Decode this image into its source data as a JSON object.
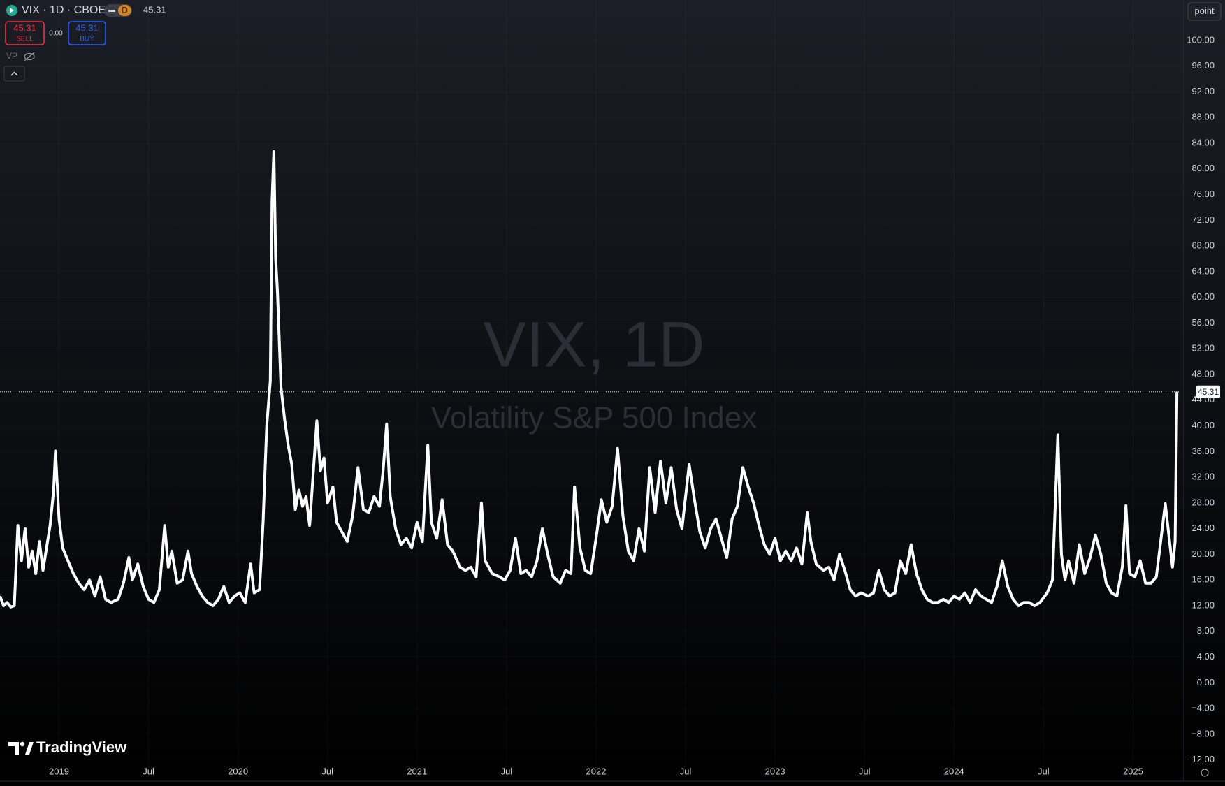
{
  "ui": {
    "symbol": "VIX · 1D · CBOE",
    "interval_badge": "D",
    "header_price": "45.31",
    "sell_price": "45.31",
    "sell_label": "SELL",
    "spread": "0.00",
    "buy_price": "45.31",
    "buy_label": "BUY",
    "vp_label": "VP",
    "scale_button": "point",
    "watermark_title": "VIX, 1D",
    "watermark_subtitle": "Volatility S&P 500 Index",
    "brand": "TradingView"
  },
  "chart_data": {
    "type": "line",
    "x": [
      2018.67,
      2018.69,
      2018.71,
      2018.73,
      2018.75,
      2018.77,
      2018.79,
      2018.81,
      2018.83,
      2018.85,
      2018.87,
      2018.89,
      2018.91,
      2018.93,
      2018.95,
      2018.97,
      2018.98,
      2019.0,
      2019.02,
      2019.05,
      2019.08,
      2019.11,
      2019.14,
      2019.17,
      2019.2,
      2019.23,
      2019.26,
      2019.29,
      2019.33,
      2019.36,
      2019.39,
      2019.41,
      2019.44,
      2019.47,
      2019.5,
      2019.53,
      2019.56,
      2019.59,
      2019.61,
      2019.63,
      2019.66,
      2019.69,
      2019.72,
      2019.74,
      2019.77,
      2019.8,
      2019.83,
      2019.86,
      2019.89,
      2019.92,
      2019.95,
      2019.98,
      2020.01,
      2020.04,
      2020.07,
      2020.09,
      2020.12,
      2020.14,
      2020.16,
      2020.18,
      2020.19,
      2020.2,
      2020.21,
      2020.22,
      2020.24,
      2020.26,
      2020.28,
      2020.3,
      2020.32,
      2020.34,
      2020.36,
      2020.38,
      2020.4,
      2020.44,
      2020.46,
      2020.48,
      2020.5,
      2020.53,
      2020.55,
      2020.58,
      2020.61,
      2020.64,
      2020.67,
      2020.7,
      2020.73,
      2020.76,
      2020.79,
      2020.81,
      2020.83,
      2020.85,
      2020.88,
      2020.91,
      2020.94,
      2020.97,
      2021.0,
      2021.03,
      2021.06,
      2021.08,
      2021.11,
      2021.14,
      2021.17,
      2021.2,
      2021.24,
      2021.27,
      2021.3,
      2021.33,
      2021.36,
      2021.38,
      2021.42,
      2021.46,
      2021.49,
      2021.52,
      2021.55,
      2021.58,
      2021.61,
      2021.64,
      2021.67,
      2021.7,
      2021.73,
      2021.76,
      2021.8,
      2021.83,
      2021.86,
      2021.88,
      2021.91,
      2021.94,
      2021.97,
      2022.0,
      2022.03,
      2022.06,
      2022.09,
      2022.12,
      2022.15,
      2022.18,
      2022.21,
      2022.24,
      2022.27,
      2022.3,
      2022.33,
      2022.36,
      2022.39,
      2022.42,
      2022.45,
      2022.48,
      2022.52,
      2022.55,
      2022.58,
      2022.61,
      2022.64,
      2022.67,
      2022.7,
      2022.73,
      2022.76,
      2022.79,
      2022.82,
      2022.85,
      2022.88,
      2022.91,
      2022.94,
      2022.97,
      2023.0,
      2023.03,
      2023.06,
      2023.09,
      2023.12,
      2023.15,
      2023.18,
      2023.2,
      2023.23,
      2023.27,
      2023.3,
      2023.33,
      2023.36,
      2023.39,
      2023.42,
      2023.45,
      2023.48,
      2023.52,
      2023.55,
      2023.58,
      2023.61,
      2023.64,
      2023.67,
      2023.7,
      2023.73,
      2023.76,
      2023.79,
      2023.82,
      2023.85,
      2023.88,
      2023.91,
      2023.94,
      2023.97,
      2024.0,
      2024.03,
      2024.06,
      2024.09,
      2024.12,
      2024.15,
      2024.18,
      2024.21,
      2024.24,
      2024.27,
      2024.3,
      2024.33,
      2024.36,
      2024.39,
      2024.42,
      2024.45,
      2024.48,
      2024.52,
      2024.55,
      2024.58,
      2024.6,
      2024.62,
      2024.64,
      2024.67,
      2024.7,
      2024.73,
      2024.76,
      2024.79,
      2024.82,
      2024.85,
      2024.88,
      2024.91,
      2024.94,
      2024.96,
      2024.98,
      2025.01,
      2025.04,
      2025.07,
      2025.1,
      2025.13,
      2025.15,
      2025.18,
      2025.2,
      2025.22,
      2025.235,
      2025.245
    ],
    "series": [
      {
        "name": "VIX",
        "color": "#ffffff",
        "values": [
          13.5,
          12.0,
          12.5,
          11.8,
          12.0,
          24.5,
          19.0,
          24.0,
          18.0,
          20.5,
          17.0,
          22.0,
          17.5,
          21.0,
          24.5,
          30.0,
          36.1,
          25.5,
          21.0,
          19.0,
          17.0,
          15.5,
          14.5,
          16.0,
          13.5,
          16.5,
          13.0,
          12.5,
          13.0,
          15.5,
          19.5,
          16.0,
          18.5,
          15.0,
          13.0,
          12.5,
          14.5,
          24.5,
          18.0,
          20.5,
          15.5,
          16.0,
          20.5,
          17.0,
          15.0,
          13.5,
          12.5,
          12.0,
          13.0,
          15.0,
          12.5,
          13.5,
          14.0,
          12.5,
          18.5,
          14.0,
          14.5,
          25.0,
          40.0,
          47.0,
          75.0,
          82.7,
          66.0,
          61.0,
          46.0,
          41.0,
          37.0,
          34.0,
          27.0,
          30.0,
          27.5,
          29.0,
          24.5,
          40.8,
          33.0,
          35.0,
          28.0,
          30.5,
          25.0,
          23.5,
          22.0,
          26.0,
          33.5,
          27.0,
          26.5,
          29.0,
          27.5,
          33.0,
          40.3,
          29.0,
          24.0,
          21.5,
          22.5,
          21.0,
          25.0,
          22.0,
          37.0,
          25.0,
          22.5,
          28.5,
          21.5,
          20.5,
          18.0,
          17.5,
          18.0,
          16.5,
          28.0,
          19.0,
          17.0,
          16.5,
          16.0,
          17.5,
          22.5,
          17.0,
          17.5,
          16.5,
          19.0,
          24.0,
          20.0,
          16.5,
          15.5,
          17.5,
          17.0,
          30.5,
          21.0,
          17.5,
          17.0,
          22.5,
          28.5,
          25.0,
          27.5,
          36.5,
          26.0,
          20.5,
          19.0,
          24.0,
          20.5,
          33.5,
          26.5,
          34.5,
          28.0,
          33.5,
          27.0,
          24.0,
          34.0,
          28.5,
          23.5,
          21.0,
          24.0,
          25.5,
          22.5,
          19.5,
          25.5,
          27.5,
          33.5,
          30.5,
          28.0,
          24.5,
          21.5,
          20.0,
          22.5,
          19.0,
          20.5,
          19.0,
          21.0,
          18.5,
          26.5,
          22.0,
          18.5,
          17.5,
          18.0,
          16.0,
          20.0,
          17.5,
          14.5,
          13.5,
          14.0,
          13.5,
          14.0,
          17.5,
          14.5,
          13.5,
          14.0,
          19.0,
          17.0,
          21.5,
          17.0,
          14.5,
          13.0,
          12.5,
          12.5,
          13.0,
          12.5,
          13.5,
          13.0,
          14.0,
          12.5,
          14.5,
          13.5,
          13.0,
          12.5,
          15.0,
          19.0,
          15.0,
          13.0,
          12.0,
          12.5,
          12.5,
          12.0,
          12.5,
          14.0,
          16.0,
          38.6,
          20.0,
          16.0,
          19.0,
          15.5,
          21.5,
          17.0,
          19.5,
          23.0,
          20.0,
          15.5,
          14.0,
          13.5,
          18.0,
          27.6,
          17.0,
          16.5,
          19.0,
          15.5,
          15.5,
          16.5,
          21.0,
          27.9,
          23.0,
          18.0,
          22.0,
          45.31
        ]
      }
    ],
    "xlim": [
      2018.67,
      2025.26
    ],
    "xticks": [
      {
        "value": 2019,
        "label": "2019"
      },
      {
        "value": 2019.5,
        "label": "Jul"
      },
      {
        "value": 2020,
        "label": "2020"
      },
      {
        "value": 2020.5,
        "label": "Jul"
      },
      {
        "value": 2021,
        "label": "2021"
      },
      {
        "value": 2021.5,
        "label": "Jul"
      },
      {
        "value": 2022,
        "label": "2022"
      },
      {
        "value": 2022.5,
        "label": "Jul"
      },
      {
        "value": 2023,
        "label": "2023"
      },
      {
        "value": 2023.5,
        "label": "Jul"
      },
      {
        "value": 2024,
        "label": "2024"
      },
      {
        "value": 2024.5,
        "label": "Jul"
      },
      {
        "value": 2025,
        "label": "2025"
      }
    ],
    "ylim": [
      -12.8,
      106.3
    ],
    "yticks": [
      {
        "value": -12,
        "label": "−12.00"
      },
      {
        "value": -8,
        "label": "−8.00"
      },
      {
        "value": -4,
        "label": "−4.00"
      },
      {
        "value": 0,
        "label": "0.00"
      },
      {
        "value": 4,
        "label": "4.00"
      },
      {
        "value": 8,
        "label": "8.00"
      },
      {
        "value": 12,
        "label": "12.00"
      },
      {
        "value": 16,
        "label": "16.00"
      },
      {
        "value": 20,
        "label": "20.00"
      },
      {
        "value": 24,
        "label": "24.00"
      },
      {
        "value": 28,
        "label": "28.00"
      },
      {
        "value": 32,
        "label": "32.00"
      },
      {
        "value": 36,
        "label": "36.00"
      },
      {
        "value": 40,
        "label": "40.00"
      },
      {
        "value": 44,
        "label": "44.00"
      },
      {
        "value": 48,
        "label": "48.00"
      },
      {
        "value": 52,
        "label": "52.00"
      },
      {
        "value": 56,
        "label": "56.00"
      },
      {
        "value": 60,
        "label": "60.00"
      },
      {
        "value": 64,
        "label": "64.00"
      },
      {
        "value": 68,
        "label": "68.00"
      },
      {
        "value": 72,
        "label": "72.00"
      },
      {
        "value": 76,
        "label": "76.00"
      },
      {
        "value": 80,
        "label": "80.00"
      },
      {
        "value": 84,
        "label": "84.00"
      },
      {
        "value": 88,
        "label": "88.00"
      },
      {
        "value": 92,
        "label": "92.00"
      },
      {
        "value": 96,
        "label": "96.00"
      },
      {
        "value": 100,
        "label": "100.00"
      }
    ],
    "grid": true
  }
}
